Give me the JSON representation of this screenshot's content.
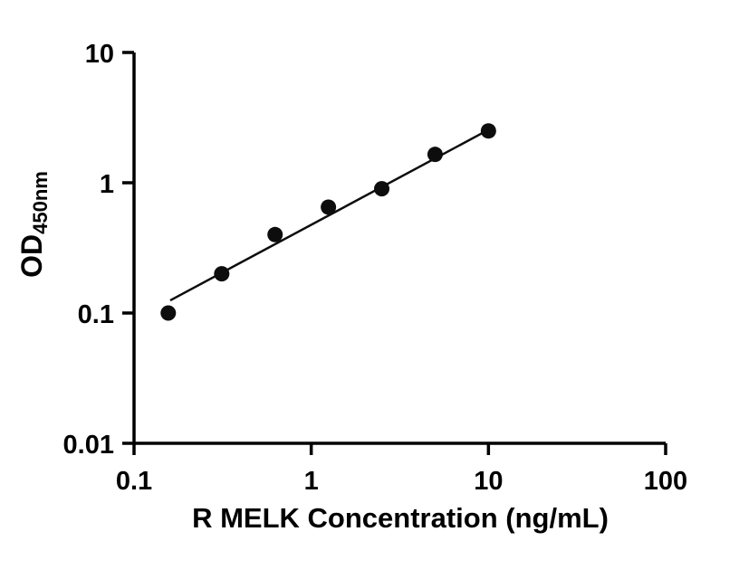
{
  "chart_data": {
    "type": "scatter",
    "title": "",
    "xlabel": "R MELK Concentration (ng/mL)",
    "ylabel_main": "OD",
    "ylabel_sub": "450nm",
    "x_scale": "log",
    "y_scale": "log",
    "xlim": [
      0.1,
      100
    ],
    "ylim": [
      0.01,
      10
    ],
    "grid": false,
    "legend": "none",
    "x_ticks": [
      {
        "value": 0.1,
        "label": "0.1"
      },
      {
        "value": 1,
        "label": "1"
      },
      {
        "value": 10,
        "label": "10"
      },
      {
        "value": 100,
        "label": "100"
      }
    ],
    "y_ticks": [
      {
        "value": 0.01,
        "label": "0.01"
      },
      {
        "value": 0.1,
        "label": "0.1"
      },
      {
        "value": 1,
        "label": "1"
      },
      {
        "value": 10,
        "label": "10"
      }
    ],
    "points": [
      {
        "x": 0.156,
        "y": 0.1
      },
      {
        "x": 0.3125,
        "y": 0.2
      },
      {
        "x": 0.625,
        "y": 0.4
      },
      {
        "x": 1.25,
        "y": 0.65
      },
      {
        "x": 2.5,
        "y": 0.9
      },
      {
        "x": 5,
        "y": 1.65
      },
      {
        "x": 10,
        "y": 2.5
      }
    ],
    "fit_line": {
      "x1": 0.16,
      "y1": 0.125,
      "x2": 10,
      "y2": 2.55
    },
    "marker": {
      "shape": "circle",
      "radius": 8.5,
      "color": "#0d0d0d"
    },
    "line_color": "#0d0d0d",
    "axis_color": "#000000"
  }
}
